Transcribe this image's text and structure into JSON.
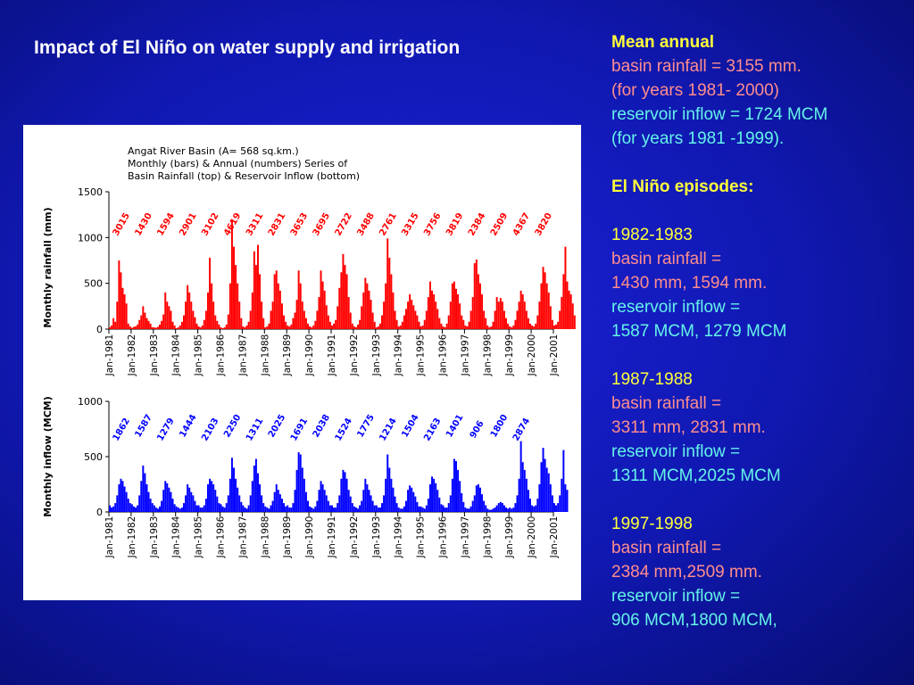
{
  "title": "Impact of El Niño on water supply and irrigation",
  "sidebar": {
    "mean_heading": "Mean annual",
    "mean_rain": "basin rainfall = 3155 mm.",
    "mean_rain_years": "(for years 1981- 2000)",
    "mean_inflow": "reservoir inflow = 1724 MCM",
    "mean_inflow_years": "(for years 1981 -1999).",
    "episodes_heading": "El Niño episodes:",
    "episodes": [
      {
        "years": "1982-1983",
        "rain_label": "basin rainfall =",
        "rain": "1430 mm, 1594 mm.",
        "inflow_label": "reservoir inflow =",
        "inflow": "1587 MCM,  1279 MCM"
      },
      {
        "years": "1987-1988",
        "rain_label": "basin rainfall =",
        "rain": "3311 mm, 2831 mm.",
        "inflow_label": "reservoir inflow =",
        "inflow": "1311 MCM,2025 MCM"
      },
      {
        "years": "1997-1998",
        "rain_label": "basin rainfall =",
        "rain": "2384 mm,2509 mm.",
        "inflow_label": "reservoir inflow =",
        "inflow": "906 MCM,1800 MCM,"
      }
    ]
  },
  "chart_header": [
    "Angat River Basin (A= 568 sq.km.)",
    "Monthly  (bars) & Annual (numbers)  Series of",
    "Basin Rainfall (top) & Reservoir Inflow (bottom)"
  ],
  "colors": {
    "rain": "#ff0000",
    "inflow": "#0000ff",
    "background": "#1018b0"
  },
  "chart_data": [
    {
      "type": "bar",
      "ylabel": "Monthly rainfall (mm)",
      "ylim": [
        0,
        1500
      ],
      "yticks": [
        "0",
        "500",
        "1000",
        "1500"
      ],
      "xticks": [
        "Jan-1981",
        "Jan-1982",
        "Jan-1983",
        "Jan-1984",
        "Jan-1985",
        "Jan-1986",
        "Jan-1987",
        "Jan-1988",
        "Jan-1989",
        "Jan-1990",
        "Jan-1991",
        "Jan-1992",
        "Jan-1993",
        "Jan-1994",
        "Jan-1995",
        "Jan-1996",
        "Jan-1997",
        "Jan-1998",
        "Jan-1999",
        "Jan-2000",
        "Jan-2001"
      ],
      "annual_labels": [
        "3015",
        "1430",
        "1594",
        "2901",
        "3102",
        "4619",
        "3311",
        "2831",
        "3653",
        "3695",
        "2722",
        "3488",
        "2761",
        "3315",
        "3756",
        "3819",
        "2384",
        "2509",
        "4367",
        "3820"
      ],
      "monthly_values": [
        20,
        40,
        120,
        80,
        300,
        750,
        620,
        450,
        380,
        280,
        60,
        30,
        15,
        25,
        30,
        50,
        100,
        150,
        250,
        180,
        120,
        90,
        60,
        20,
        20,
        15,
        25,
        50,
        90,
        160,
        400,
        300,
        250,
        200,
        80,
        40,
        10,
        20,
        40,
        80,
        150,
        300,
        480,
        400,
        300,
        200,
        130,
        60,
        30,
        20,
        40,
        100,
        200,
        400,
        780,
        500,
        300,
        150,
        90,
        50,
        20,
        10,
        20,
        50,
        160,
        500,
        1200,
        900,
        700,
        500,
        300,
        120,
        30,
        20,
        40,
        80,
        200,
        400,
        850,
        700,
        920,
        600,
        300,
        120,
        20,
        30,
        60,
        200,
        300,
        600,
        640,
        500,
        420,
        280,
        150,
        80,
        40,
        30,
        50,
        120,
        180,
        320,
        640,
        500,
        300,
        200,
        120,
        60,
        30,
        20,
        40,
        90,
        200,
        350,
        640,
        520,
        420,
        260,
        150,
        80,
        40,
        60,
        100,
        250,
        450,
        620,
        820,
        700,
        600,
        350,
        180,
        60,
        30,
        20,
        50,
        100,
        250,
        400,
        560,
        500,
        420,
        320,
        180,
        80,
        20,
        30,
        60,
        150,
        300,
        500,
        990,
        780,
        600,
        400,
        200,
        100,
        30,
        40,
        80,
        150,
        220,
        300,
        380,
        320,
        260,
        200,
        150,
        80,
        30,
        40,
        100,
        200,
        350,
        520,
        420,
        380,
        300,
        220,
        120,
        60,
        30,
        20,
        60,
        150,
        300,
        500,
        520,
        440,
        380,
        280,
        150,
        100,
        40,
        30,
        80,
        200,
        350,
        720,
        760,
        600,
        500,
        380,
        200,
        120,
        40,
        20,
        30,
        80,
        200,
        350,
        300,
        340,
        300,
        200,
        120,
        60,
        30,
        20,
        40,
        100,
        200,
        300,
        420,
        380,
        300,
        200,
        120,
        60,
        40,
        30,
        60,
        150,
        300,
        500,
        680,
        620,
        500,
        400,
        250,
        100,
        40,
        50,
        80,
        200,
        350,
        600,
        900,
        520,
        420,
        380,
        280,
        150
      ]
    },
    {
      "type": "bar",
      "ylabel": "Monthly inflow (MCM)",
      "ylim": [
        0,
        1000
      ],
      "yticks": [
        "0",
        "500",
        "1000"
      ],
      "xticks": [
        "Jan-1981",
        "Jan-1982",
        "Jan-1983",
        "Jan-1984",
        "Jan-1985",
        "Jan-1986",
        "Jan-1987",
        "Jan-1988",
        "Jan-1989",
        "Jan-1990",
        "Jan-1991",
        "Jan-1992",
        "Jan-1993",
        "Jan-1994",
        "Jan-1995",
        "Jan-1996",
        "Jan-1997",
        "Jan-1998",
        "Jan-1999",
        "Jan-2000",
        "Jan-2001"
      ],
      "annual_labels": [
        "1862",
        "1587",
        "1279",
        "1444",
        "2103",
        "2250",
        "1311",
        "2025",
        "1691",
        "2038",
        "1524",
        "1775",
        "1214",
        "1504",
        "2163",
        "1401",
        "906",
        "1800",
        "2874"
      ],
      "monthly_values": [
        60,
        40,
        50,
        80,
        150,
        250,
        300,
        280,
        230,
        180,
        120,
        80,
        70,
        50,
        40,
        60,
        150,
        280,
        420,
        350,
        250,
        180,
        120,
        80,
        60,
        40,
        30,
        50,
        100,
        200,
        280,
        260,
        220,
        180,
        120,
        70,
        50,
        40,
        30,
        40,
        80,
        150,
        250,
        220,
        180,
        150,
        100,
        60,
        60,
        40,
        40,
        60,
        120,
        250,
        300,
        280,
        250,
        200,
        140,
        80,
        70,
        50,
        40,
        80,
        150,
        300,
        490,
        400,
        300,
        220,
        150,
        90,
        60,
        40,
        30,
        60,
        150,
        280,
        420,
        480,
        350,
        250,
        150,
        80,
        50,
        40,
        30,
        60,
        100,
        180,
        250,
        200,
        160,
        120,
        80,
        50,
        60,
        40,
        40,
        80,
        200,
        380,
        540,
        520,
        400,
        300,
        180,
        100,
        50,
        40,
        30,
        50,
        100,
        200,
        280,
        250,
        200,
        150,
        100,
        60,
        60,
        40,
        40,
        80,
        150,
        300,
        380,
        360,
        300,
        200,
        140,
        80,
        50,
        40,
        30,
        60,
        100,
        200,
        300,
        250,
        200,
        150,
        100,
        60,
        60,
        40,
        40,
        80,
        150,
        300,
        520,
        400,
        300,
        220,
        140,
        80,
        40,
        30,
        30,
        50,
        100,
        200,
        240,
        220,
        180,
        140,
        90,
        50,
        50,
        40,
        30,
        60,
        120,
        250,
        320,
        300,
        260,
        200,
        130,
        70,
        60,
        40,
        40,
        80,
        150,
        300,
        480,
        460,
        380,
        280,
        170,
        90,
        40,
        30,
        30,
        50,
        100,
        150,
        240,
        250,
        220,
        160,
        100,
        60,
        30,
        20,
        20,
        30,
        40,
        60,
        80,
        90,
        80,
        60,
        40,
        30,
        40,
        30,
        40,
        80,
        150,
        300,
        640,
        450,
        380,
        300,
        200,
        120,
        60,
        50,
        60,
        120,
        250,
        450,
        580,
        480,
        400,
        350,
        250,
        150,
        80,
        60,
        80,
        150,
        300,
        560,
        250,
        200
      ]
    }
  ]
}
